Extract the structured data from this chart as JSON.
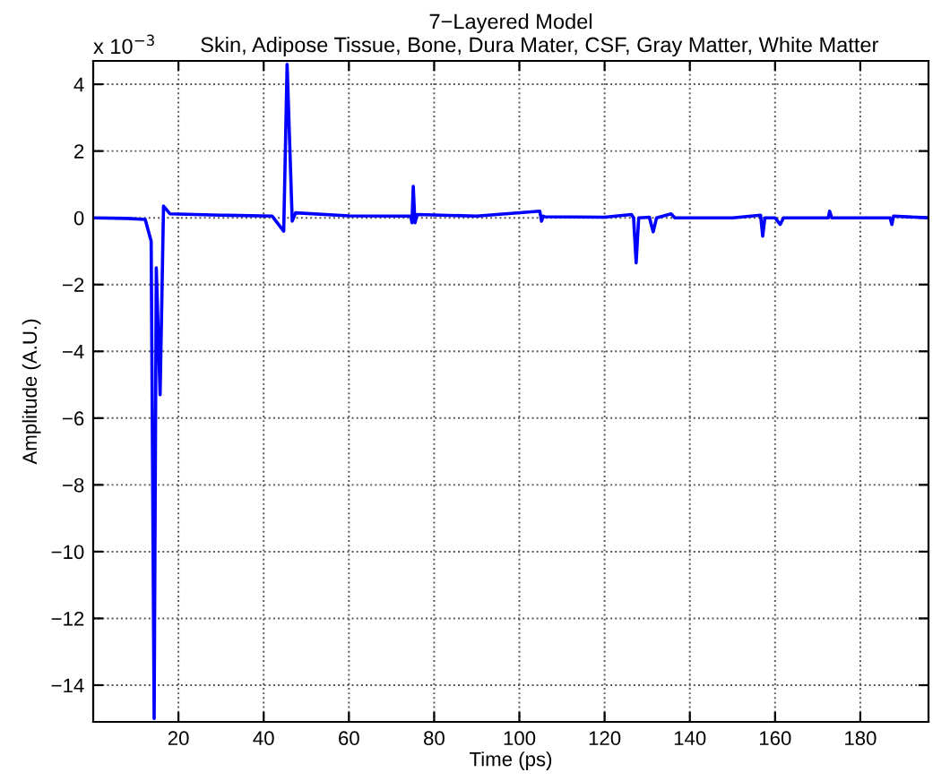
{
  "chart_data": {
    "type": "line",
    "title": "7−Layered Model",
    "subtitle": "Skin, Adipose Tissue, Bone, Dura Mater, CSF, Gray Matter, White Matter",
    "xlabel": "Time (ps)",
    "ylabel": "Amplitude (A.U.)",
    "annotations": [
      "x 10$^{−3}$"
    ],
    "xlim": [
      0,
      196
    ],
    "ylim": [
      -15.1,
      4.7
    ],
    "xticks": [
      20,
      40,
      60,
      80,
      100,
      120,
      140,
      160,
      180
    ],
    "yticks": [
      -14,
      -12,
      -10,
      -8,
      -6,
      -4,
      -2,
      0,
      2,
      4
    ],
    "grid": true,
    "marker": "none",
    "line_style": "solid",
    "series": [
      {
        "color": "#0000ff",
        "x": [
          0,
          8,
          12.2,
          13.6,
          14.3,
          14.8,
          15.7,
          16.5,
          18,
          30,
          42,
          44.7,
          45.5,
          46.7,
          47.5,
          60,
          74.5,
          74.8,
          75.1,
          75.5,
          76,
          90,
          104.8,
          105.2,
          105.6,
          106,
          120,
          126.3,
          126.8,
          127.4,
          128,
          130.5,
          131.4,
          132.2,
          135.6,
          136.5,
          150,
          156.6,
          157.1,
          157.6,
          160,
          161.2,
          162,
          172.5,
          172.8,
          173.3,
          187,
          187.4,
          187.8,
          196
        ],
        "values": [
          0,
          -0.02,
          -0.05,
          -0.7,
          -15,
          -1.5,
          -5.3,
          0.35,
          0.12,
          0.08,
          0.05,
          -0.4,
          4.6,
          -0.1,
          0.15,
          0.06,
          0.05,
          -0.15,
          0.94,
          -0.15,
          0.1,
          0.05,
          0.2,
          -0.1,
          0.05,
          0.03,
          0.02,
          0.1,
          0.0,
          -1.35,
          0.0,
          0.02,
          -0.42,
          0.0,
          0.12,
          0.0,
          0.0,
          0.08,
          -0.55,
          0.0,
          0.0,
          -0.2,
          0.0,
          0.0,
          0.2,
          0.0,
          0.0,
          -0.2,
          0.05,
          0.0
        ]
      }
    ]
  }
}
